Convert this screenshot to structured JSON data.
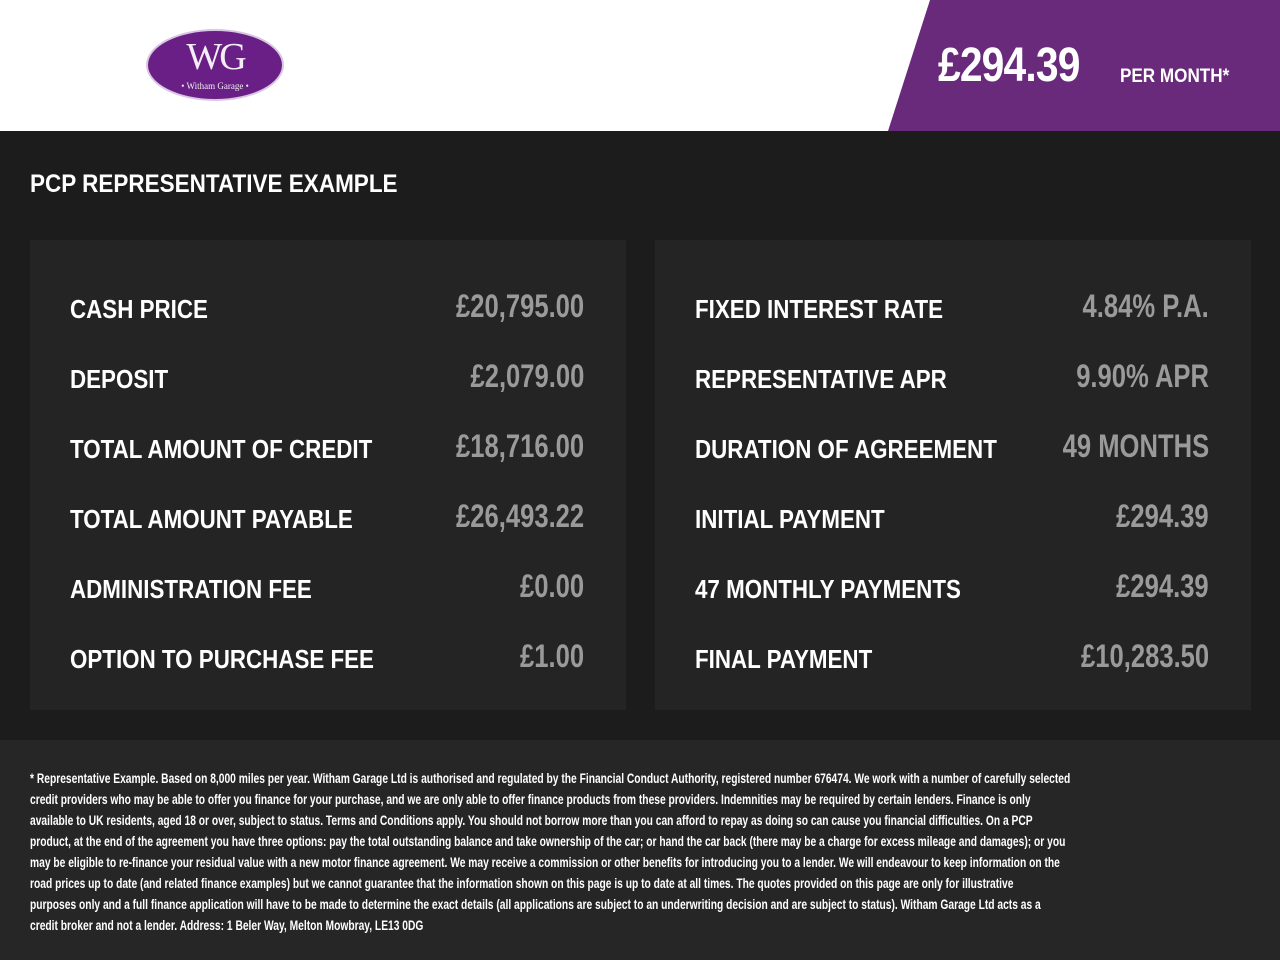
{
  "logo": {
    "mark": "WG",
    "name": "• Witham Garage •"
  },
  "header": {
    "monthly_price": "£294.39",
    "per_month": "PER MONTH*",
    "accent": "#6a2a7c"
  },
  "title": "PCP REPRESENTATIVE EXAMPLE",
  "left": [
    {
      "label": "CASH PRICE",
      "value": "£20,795.00"
    },
    {
      "label": "DEPOSIT",
      "value": "£2,079.00"
    },
    {
      "label": "TOTAL AMOUNT OF CREDIT",
      "value": "£18,716.00"
    },
    {
      "label": "TOTAL AMOUNT PAYABLE",
      "value": "£26,493.22"
    },
    {
      "label": "ADMINISTRATION FEE",
      "value": "£0.00"
    },
    {
      "label": "OPTION TO PURCHASE FEE",
      "value": "£1.00"
    }
  ],
  "right": [
    {
      "label": "FIXED INTEREST RATE",
      "value": "4.84% P.A."
    },
    {
      "label": "REPRESENTATIVE APR",
      "value": "9.90% APR"
    },
    {
      "label": "DURATION OF AGREEMENT",
      "value": "49 MONTHS"
    },
    {
      "label": "INITIAL PAYMENT",
      "value": "£294.39"
    },
    {
      "label": "47 MONTHLY PAYMENTS",
      "value": "£294.39"
    },
    {
      "label": "FINAL PAYMENT",
      "value": "£10,283.50"
    }
  ],
  "disclaimer": [
    "* Representative Example. Based on 8,000 miles per year. Witham Garage Ltd is authorised and regulated by the Financial Conduct Authority, registered number 676474. We work with a number of carefully selected",
    "credit providers who may be able to offer you finance for your purchase, and we are only able to offer finance products from these providers. Indemnities may be required by certain lenders. Finance is only",
    "available to UK residents, aged 18 or over, subject to status. Terms and Conditions apply. You should not borrow more than you can afford to repay as doing so can cause you financial difficulties. On a PCP",
    "product, at the end of the agreement you have three options: pay the total outstanding balance and take ownership of the car; or hand the car back (there may be a charge for excess mileage and damages); or you",
    "may be eligible to re-finance your residual value with a new motor finance agreement. We may receive a commission or other benefits for introducing you to a lender. We will endeavour to keep information on the",
    "road prices up to date (and related finance examples) but we cannot guarantee that the information shown on this page is up to date at all times. The quotes provided on this page are only for illustrative",
    "purposes only and a full finance application will have to be made to determine the exact details (all applications are subject to an underwriting decision and are subject to status). Witham Garage Ltd acts as a",
    "credit broker and not a lender. Address: 1 Beler Way, Melton Mowbray, LE13 0DG"
  ]
}
